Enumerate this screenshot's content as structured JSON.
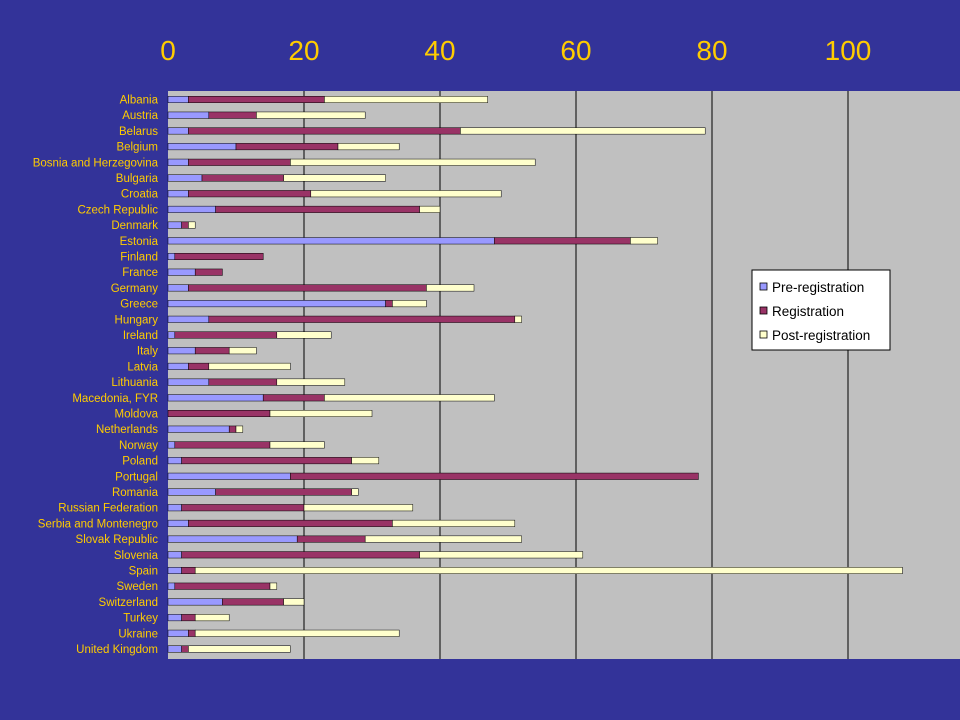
{
  "chart_data": {
    "type": "bar",
    "orientation": "horizontal",
    "stacked": true,
    "title": "",
    "xlabel": "",
    "ylabel": "",
    "xlim": [
      0,
      108
    ],
    "x_ticks": [
      "0",
      "20",
      "40",
      "60",
      "80",
      "100"
    ],
    "x_tick_values": [
      0,
      20,
      40,
      60,
      80,
      100
    ],
    "x_axis_position": "top",
    "grid": true,
    "legend_position": "right",
    "categories": [
      "Albania",
      "Austria",
      "Belarus",
      "Belgium",
      "Bosnia and Herzegovina",
      "Bulgaria",
      "Croatia",
      "Czech Republic",
      "Denmark",
      "Estonia",
      "Finland",
      "France",
      "Germany",
      "Greece",
      "Hungary",
      "Ireland",
      "Italy",
      "Latvia",
      "Lithuania",
      "Macedonia, FYR",
      "Moldova",
      "Netherlands",
      "Norway",
      "Poland",
      "Portugal",
      "Romania",
      "Russian Federation",
      "Serbia and Montenegro",
      "Slovak Republic",
      "Slovenia",
      "Spain",
      "Sweden",
      "Switzerland",
      "Turkey",
      "Ukraine",
      "United Kingdom"
    ],
    "series": [
      {
        "name": "Pre-registration",
        "color": "#9999FF",
        "values": [
          3,
          6,
          3,
          10,
          3,
          5,
          3,
          7,
          2,
          48,
          1,
          4,
          3,
          32,
          6,
          1,
          4,
          3,
          6,
          14,
          0,
          9,
          1,
          2,
          18,
          7,
          2,
          3,
          19,
          2,
          2,
          1,
          8,
          2,
          3,
          2
        ]
      },
      {
        "name": "Registration",
        "color": "#993366",
        "values": [
          20,
          7,
          40,
          15,
          15,
          12,
          18,
          30,
          1,
          20,
          13,
          4,
          35,
          1,
          45,
          15,
          5,
          3,
          10,
          9,
          15,
          1,
          14,
          25,
          60,
          20,
          18,
          30,
          10,
          35,
          2,
          14,
          9,
          2,
          1,
          1
        ]
      },
      {
        "name": "Post-registration",
        "color": "#FFFFCC",
        "values": [
          24,
          16,
          36,
          9,
          36,
          15,
          28,
          3,
          1,
          4,
          0,
          0,
          7,
          5,
          1,
          8,
          4,
          12,
          10,
          25,
          15,
          1,
          8,
          4,
          0,
          1,
          16,
          18,
          23,
          24,
          104,
          1,
          3,
          5,
          30,
          15
        ]
      }
    ]
  },
  "colors": {
    "background": "#333399",
    "plot_background": "#C0C0C0",
    "gridline": "#000000",
    "tick_text": "#FFCC00",
    "legend_background": "#FFFFFF"
  }
}
